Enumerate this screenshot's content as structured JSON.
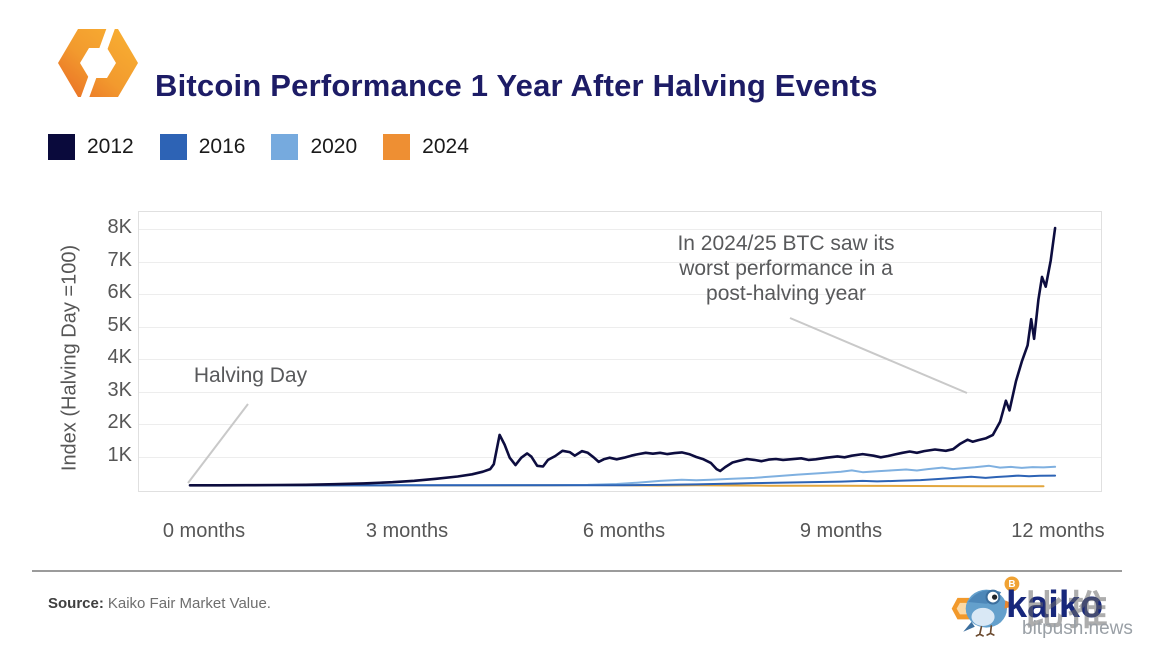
{
  "header": {
    "title": "Bitcoin Performance 1 Year After Halving Events"
  },
  "legend": [
    {
      "label": "2012",
      "color": "#0a0a3c"
    },
    {
      "label": "2016",
      "color": "#2d63b5"
    },
    {
      "label": "2020",
      "color": "#76aade"
    },
    {
      "label": "2024",
      "color": "#ee8f33"
    }
  ],
  "footer": {
    "source_label": "Source:",
    "source_text": "Kaiko Fair Market Value.",
    "brand_wordmark": "kaiko",
    "watermark": "bitpush.news",
    "watermark_cn": "比推"
  },
  "chart_data": {
    "type": "line",
    "title": "Bitcoin Performance 1 Year After Halving Events",
    "xlabel": "",
    "ylabel": "Index (Halving Day =100)",
    "x_unit": "months after halving",
    "xlim": [
      0,
      12.6
    ],
    "ylim": [
      0,
      8300
    ],
    "grid": true,
    "legend_position": "top-left",
    "x_ticks": [
      "0 months",
      "3 months",
      "6 months",
      "9 months",
      "12 months"
    ],
    "x_tick_values": [
      0,
      3,
      6,
      9,
      12
    ],
    "y_ticks": [
      "1K",
      "2K",
      "3K",
      "4K",
      "5K",
      "6K",
      "7K",
      "8K"
    ],
    "y_tick_values": [
      1000,
      2000,
      3000,
      4000,
      5000,
      6000,
      7000,
      8000
    ],
    "annotations": [
      {
        "text": "Halving Day",
        "target": "start of all series at index 100"
      },
      {
        "text": "In 2024/25 BTC saw its\nworst performance in a\npost-halving year",
        "target": "2024 series flat near 100"
      }
    ],
    "series": [
      {
        "name": "2012",
        "color": "#0d0d3f",
        "points": [
          [
            0,
            100
          ],
          [
            0.4,
            102
          ],
          [
            0.8,
            105
          ],
          [
            1.2,
            110
          ],
          [
            1.6,
            118
          ],
          [
            2.0,
            135
          ],
          [
            2.4,
            160
          ],
          [
            2.8,
            195
          ],
          [
            3.1,
            240
          ],
          [
            3.4,
            300
          ],
          [
            3.7,
            370
          ],
          [
            3.9,
            440
          ],
          [
            4.05,
            520
          ],
          [
            4.15,
            600
          ],
          [
            4.2,
            750
          ],
          [
            4.28,
            1650
          ],
          [
            4.35,
            1350
          ],
          [
            4.42,
            950
          ],
          [
            4.5,
            720
          ],
          [
            4.58,
            950
          ],
          [
            4.66,
            1080
          ],
          [
            4.72,
            980
          ],
          [
            4.8,
            700
          ],
          [
            4.88,
            680
          ],
          [
            4.95,
            880
          ],
          [
            5.05,
            1000
          ],
          [
            5.15,
            1160
          ],
          [
            5.25,
            1120
          ],
          [
            5.32,
            1010
          ],
          [
            5.42,
            1150
          ],
          [
            5.5,
            1100
          ],
          [
            5.58,
            960
          ],
          [
            5.65,
            820
          ],
          [
            5.72,
            900
          ],
          [
            5.8,
            950
          ],
          [
            5.9,
            900
          ],
          [
            6.0,
            950
          ],
          [
            6.1,
            1010
          ],
          [
            6.2,
            1060
          ],
          [
            6.3,
            1100
          ],
          [
            6.4,
            1070
          ],
          [
            6.5,
            1100
          ],
          [
            6.6,
            1060
          ],
          [
            6.7,
            1090
          ],
          [
            6.8,
            1110
          ],
          [
            6.9,
            1060
          ],
          [
            7.0,
            970
          ],
          [
            7.1,
            900
          ],
          [
            7.2,
            790
          ],
          [
            7.28,
            600
          ],
          [
            7.33,
            540
          ],
          [
            7.4,
            660
          ],
          [
            7.5,
            800
          ],
          [
            7.6,
            860
          ],
          [
            7.7,
            910
          ],
          [
            7.8,
            880
          ],
          [
            7.9,
            840
          ],
          [
            8.0,
            890
          ],
          [
            8.1,
            910
          ],
          [
            8.2,
            880
          ],
          [
            8.3,
            900
          ],
          [
            8.45,
            930
          ],
          [
            8.55,
            880
          ],
          [
            8.65,
            900
          ],
          [
            8.8,
            950
          ],
          [
            8.95,
            990
          ],
          [
            9.05,
            960
          ],
          [
            9.15,
            1010
          ],
          [
            9.3,
            1060
          ],
          [
            9.45,
            1010
          ],
          [
            9.55,
            960
          ],
          [
            9.65,
            1000
          ],
          [
            9.75,
            1050
          ],
          [
            9.85,
            1100
          ],
          [
            9.95,
            1140
          ],
          [
            10.05,
            1100
          ],
          [
            10.15,
            1150
          ],
          [
            10.3,
            1200
          ],
          [
            10.45,
            1160
          ],
          [
            10.55,
            1210
          ],
          [
            10.65,
            1380
          ],
          [
            10.75,
            1500
          ],
          [
            10.82,
            1440
          ],
          [
            10.9,
            1490
          ],
          [
            11.0,
            1540
          ],
          [
            11.1,
            1650
          ],
          [
            11.2,
            2050
          ],
          [
            11.28,
            2700
          ],
          [
            11.33,
            2400
          ],
          [
            11.42,
            3300
          ],
          [
            11.5,
            3900
          ],
          [
            11.58,
            4400
          ],
          [
            11.63,
            5200
          ],
          [
            11.67,
            4600
          ],
          [
            11.73,
            5800
          ],
          [
            11.78,
            6500
          ],
          [
            11.83,
            6200
          ],
          [
            11.9,
            7000
          ],
          [
            11.96,
            8000
          ]
        ]
      },
      {
        "name": "2016",
        "color": "#2d63b5",
        "points": [
          [
            0,
            100
          ],
          [
            1,
            100
          ],
          [
            2,
            98
          ],
          [
            3,
            100
          ],
          [
            4,
            102
          ],
          [
            5,
            100
          ],
          [
            6,
            105
          ],
          [
            6.5,
            115
          ],
          [
            7,
            130
          ],
          [
            7.4,
            150
          ],
          [
            7.8,
            170
          ],
          [
            8.2,
            185
          ],
          [
            8.6,
            200
          ],
          [
            9.0,
            215
          ],
          [
            9.3,
            235
          ],
          [
            9.5,
            220
          ],
          [
            9.8,
            240
          ],
          [
            10.1,
            260
          ],
          [
            10.4,
            300
          ],
          [
            10.65,
            340
          ],
          [
            10.8,
            365
          ],
          [
            11.0,
            330
          ],
          [
            11.15,
            355
          ],
          [
            11.3,
            375
          ],
          [
            11.45,
            400
          ],
          [
            11.6,
            380
          ],
          [
            11.75,
            395
          ],
          [
            11.96,
            400
          ]
        ]
      },
      {
        "name": "2020",
        "color": "#7fb0e0",
        "points": [
          [
            0,
            100
          ],
          [
            1,
            100
          ],
          [
            2,
            102
          ],
          [
            3,
            100
          ],
          [
            4,
            105
          ],
          [
            5,
            108
          ],
          [
            5.5,
            115
          ],
          [
            5.9,
            140
          ],
          [
            6.2,
            185
          ],
          [
            6.5,
            235
          ],
          [
            6.8,
            270
          ],
          [
            7.0,
            255
          ],
          [
            7.2,
            270
          ],
          [
            7.5,
            300
          ],
          [
            7.8,
            330
          ],
          [
            8.1,
            380
          ],
          [
            8.4,
            430
          ],
          [
            8.7,
            470
          ],
          [
            9.0,
            520
          ],
          [
            9.15,
            560
          ],
          [
            9.3,
            505
          ],
          [
            9.5,
            530
          ],
          [
            9.7,
            560
          ],
          [
            9.9,
            585
          ],
          [
            10.05,
            555
          ],
          [
            10.2,
            600
          ],
          [
            10.4,
            645
          ],
          [
            10.55,
            600
          ],
          [
            10.7,
            630
          ],
          [
            10.85,
            655
          ],
          [
            11.05,
            700
          ],
          [
            11.2,
            645
          ],
          [
            11.35,
            665
          ],
          [
            11.5,
            635
          ],
          [
            11.65,
            660
          ],
          [
            11.8,
            650
          ],
          [
            11.96,
            670
          ]
        ]
      },
      {
        "name": "2024",
        "color": "#e2a63d",
        "points": [
          [
            0,
            100
          ],
          [
            1,
            100
          ],
          [
            2,
            98
          ],
          [
            3,
            95
          ],
          [
            4,
            96
          ],
          [
            5,
            105
          ],
          [
            5.5,
            110
          ],
          [
            6,
            100
          ],
          [
            6.5,
            95
          ],
          [
            7,
            100
          ],
          [
            7.5,
            95
          ],
          [
            8,
            90
          ],
          [
            8.5,
            88
          ],
          [
            9,
            85
          ],
          [
            9.5,
            82
          ],
          [
            10,
            80
          ],
          [
            10.5,
            78
          ],
          [
            11,
            75
          ],
          [
            11.4,
            72
          ],
          [
            11.8,
            70
          ]
        ]
      }
    ]
  }
}
